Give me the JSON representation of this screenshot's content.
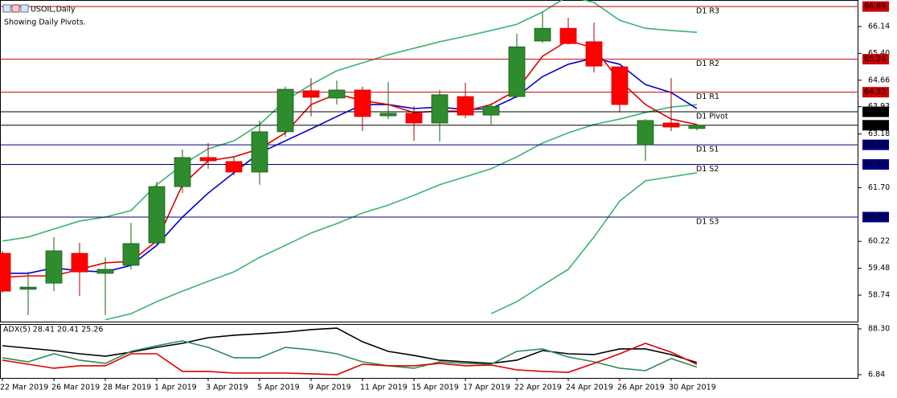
{
  "chart_data": [
    {
      "type": "candlestick",
      "title": "USOIL,Daily",
      "subtitle": "Showing Daily Pivots.",
      "categories": [
        "22 Mar 2019",
        null,
        "26 Mar 2019",
        null,
        "28 Mar 2019",
        null,
        "1 Apr 2019",
        null,
        "3 Apr 2019",
        null,
        "5 Apr 2019",
        null,
        "9 Apr 2019",
        null,
        "11 Apr 2019",
        null,
        "15 Apr 2019",
        null,
        "17 Apr 2019",
        null,
        "22 Apr 2019",
        null,
        "24 Apr 2019",
        null,
        "26 Apr 2019",
        null,
        "30 Apr 2019",
        null
      ],
      "open": [
        59.89,
        58.9,
        59.07,
        59.89,
        59.34,
        59.56,
        60.18,
        61.73,
        62.53,
        62.42,
        62.13,
        63.24,
        64.37,
        64.17,
        64.39,
        63.68,
        63.75,
        63.48,
        64.21,
        63.7,
        64.21,
        65.74,
        66.09,
        65.72,
        65.03,
        62.88,
        63.48,
        63.33
      ],
      "high": [
        59.95,
        59.38,
        60.34,
        60.18,
        59.78,
        60.73,
        61.86,
        62.75,
        62.93,
        62.55,
        63.55,
        64.48,
        64.72,
        64.65,
        64.48,
        64.61,
        63.95,
        64.39,
        64.59,
        64.03,
        65.94,
        66.54,
        66.38,
        66.25,
        65.03,
        63.59,
        64.72,
        63.46
      ],
      "low": [
        58.8,
        58.19,
        58.85,
        58.72,
        58.19,
        59.45,
        60.14,
        61.55,
        62.22,
        62.04,
        61.78,
        63.1,
        63.66,
        63.99,
        63.26,
        63.59,
        62.99,
        62.97,
        63.61,
        63.44,
        64.17,
        65.69,
        65.65,
        64.87,
        63.77,
        62.44,
        63.26,
        63.28
      ],
      "close": [
        58.85,
        58.96,
        59.96,
        59.38,
        59.45,
        60.16,
        61.73,
        62.53,
        62.44,
        62.13,
        63.24,
        64.41,
        64.19,
        64.39,
        63.66,
        63.75,
        63.48,
        64.26,
        63.7,
        63.94,
        65.58,
        66.09,
        65.67,
        65.05,
        63.99,
        63.55,
        63.37,
        63.42
      ],
      "up_color": "#2e8b2e",
      "down_color": "#ff0000",
      "series": [
        {
          "color": "#3cb371",
          "values": [
            60.23,
            60.34,
            60.56,
            60.78,
            60.89,
            61.07,
            61.78,
            62.33,
            62.77,
            62.99,
            63.44,
            64.1,
            64.54,
            64.92,
            65.14,
            65.36,
            65.54,
            65.72,
            65.87,
            66.03,
            66.2,
            66.54,
            66.98,
            66.8,
            66.31,
            66.09,
            66.03,
            65.98
          ]
        },
        {
          "color": "#3cb371",
          "values": [
            null,
            null,
            null,
            null,
            58.06,
            58.23,
            58.56,
            58.85,
            59.12,
            59.38,
            59.78,
            60.11,
            60.45,
            60.71,
            61.0,
            61.22,
            61.49,
            61.78,
            62.0,
            62.22,
            62.55,
            62.93,
            63.21,
            63.44,
            63.59,
            63.77,
            63.92,
            63.99
          ]
        },
        {
          "color": "#3cb371",
          "values": [
            null,
            null,
            null,
            null,
            null,
            null,
            null,
            null,
            null,
            null,
            null,
            null,
            null,
            null,
            null,
            null,
            null,
            null,
            null,
            58.23,
            58.56,
            59.01,
            59.45,
            60.34,
            61.33,
            61.89,
            62.0,
            62.11
          ]
        },
        {
          "color": "#0000cc",
          "values": [
            59.34,
            59.34,
            59.49,
            59.41,
            59.38,
            59.56,
            60.11,
            60.89,
            61.55,
            62.11,
            62.66,
            62.99,
            63.32,
            63.66,
            63.99,
            63.99,
            63.88,
            63.92,
            63.85,
            63.88,
            64.21,
            64.76,
            65.1,
            65.27,
            65.1,
            64.54,
            64.32,
            63.88
          ]
        },
        {
          "color": "#e00000",
          "values": [
            59.23,
            59.27,
            59.27,
            59.45,
            59.63,
            59.67,
            60.23,
            61.78,
            62.44,
            62.55,
            62.77,
            63.21,
            63.99,
            64.28,
            64.1,
            63.99,
            63.77,
            63.81,
            63.81,
            63.99,
            64.39,
            65.32,
            65.76,
            65.54,
            64.65,
            63.99,
            63.59,
            63.44
          ]
        }
      ],
      "pivots": [
        {
          "name": "D1 R3",
          "value": 66.69,
          "color": "#cc0000"
        },
        {
          "name": "D1 R2",
          "value": 65.24,
          "color": "#cc0000"
        },
        {
          "name": "D1 R1",
          "value": 64.33,
          "color": "#cc0000"
        },
        {
          "name": "D1 Pivot",
          "value": 63.79,
          "color": "#000000"
        },
        {
          "name": "D1 S1",
          "value": 62.88,
          "color": "#000080"
        },
        {
          "name": "D1 S2",
          "value": 62.34,
          "color": "#000080"
        },
        {
          "name": "D1 S3",
          "value": 60.89,
          "color": "#000080"
        }
      ],
      "current_price": 63.42,
      "ylim": [
        58.01,
        66.87
      ],
      "yticks": [
        66.14,
        {
          "value": 65.4,
          "label": "65.40"
        },
        64.66,
        63.93,
        63.18,
        {
          "value": 61.7,
          "label": "61.70"
        },
        60.22,
        59.48,
        58.74
      ]
    },
    {
      "type": "line",
      "title": "ADX(5) 28.41 20.41 25.26",
      "series": [
        {
          "color": "#000000",
          "values": [
            58.3,
            54.0,
            49.7,
            44.0,
            39.7,
            46.9,
            55.4,
            62.6,
            72.6,
            76.9,
            79.7,
            82.6,
            86.9,
            89.7,
            65.4,
            48.3,
            41.1,
            32.6,
            29.7,
            26.9,
            32.6,
            49.7,
            44.0,
            42.6,
            52.6,
            52.6,
            42.6,
            28.41
          ]
        },
        {
          "color": "#2e8b57",
          "values": [
            36.9,
            29.7,
            44.0,
            32.6,
            26.9,
            48.3,
            58.3,
            66.9,
            55.4,
            36.9,
            36.9,
            55.4,
            51.1,
            44.0,
            29.7,
            22.6,
            18.3,
            29.7,
            26.9,
            25.4,
            48.3,
            52.6,
            38.3,
            29.7,
            18.3,
            14.0,
            35.4,
            20.41
          ]
        },
        {
          "color": "#dd0000",
          "values": [
            32.6,
            25.4,
            18.3,
            22.6,
            22.6,
            44.0,
            44.0,
            12.6,
            12.6,
            9.7,
            9.7,
            9.7,
            8.3,
            6.8,
            25.4,
            22.6,
            22.6,
            26.9,
            22.6,
            24.0,
            15.4,
            12.6,
            11.1,
            26.9,
            44.0,
            62.6,
            46.9,
            25.26
          ]
        }
      ],
      "ylim": [
        1.12,
        96.88
      ],
      "yticks": [
        {
          "value": 88.3,
          "label": "88.30"
        },
        6.84
      ]
    }
  ]
}
